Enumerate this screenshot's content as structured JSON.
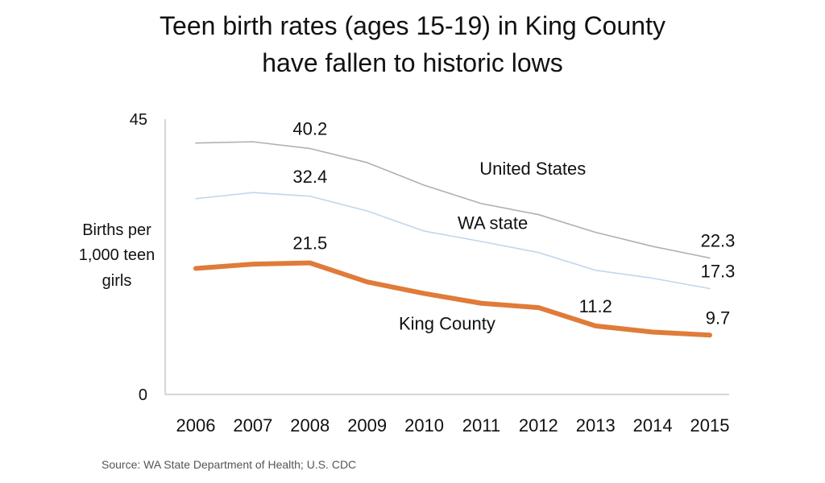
{
  "title": {
    "line1": "Teen birth rates (ages 15-19) in King County",
    "line2": "have fallen to historic lows"
  },
  "ylabel_lines": [
    "Births per",
    "1,000 teen",
    "girls"
  ],
  "source": "Source: WA State Department of Health; U.S. CDC",
  "chart_data": {
    "type": "line",
    "title": "Teen birth rates (ages 15-19) in King County have fallen to historic lows",
    "xlabel": "",
    "ylabel": "Births per 1,000 teen girls",
    "x": [
      "2006",
      "2007",
      "2008",
      "2009",
      "2010",
      "2011",
      "2012",
      "2013",
      "2014",
      "2015"
    ],
    "ylim": [
      0,
      45
    ],
    "yticks": [
      0,
      45
    ],
    "grid": false,
    "legend": "none (series labeled inline)",
    "series": [
      {
        "name": "United States",
        "color": "#b0b0b0",
        "values": [
          41.1,
          41.3,
          40.2,
          37.9,
          34.2,
          31.2,
          29.4,
          26.5,
          24.2,
          22.3
        ],
        "point_labels": [
          {
            "index": 2,
            "text": "40.2"
          },
          {
            "index": 9,
            "text": "22.3"
          }
        ]
      },
      {
        "name": "WA state",
        "color": "#bfd7ee",
        "values": [
          32.0,
          33.0,
          32.4,
          30.0,
          26.7,
          25.0,
          23.2,
          20.3,
          19.0,
          17.3
        ],
        "point_labels": [
          {
            "index": 2,
            "text": "32.4"
          },
          {
            "index": 9,
            "text": "17.3"
          }
        ]
      },
      {
        "name": "King County",
        "color": "#e07b39",
        "values": [
          20.6,
          21.3,
          21.5,
          18.4,
          16.5,
          14.9,
          14.2,
          11.2,
          10.2,
          9.7
        ],
        "point_labels": [
          {
            "index": 2,
            "text": "21.5"
          },
          {
            "index": 7,
            "text": "11.2"
          },
          {
            "index": 9,
            "text": "9.7"
          }
        ]
      }
    ]
  }
}
